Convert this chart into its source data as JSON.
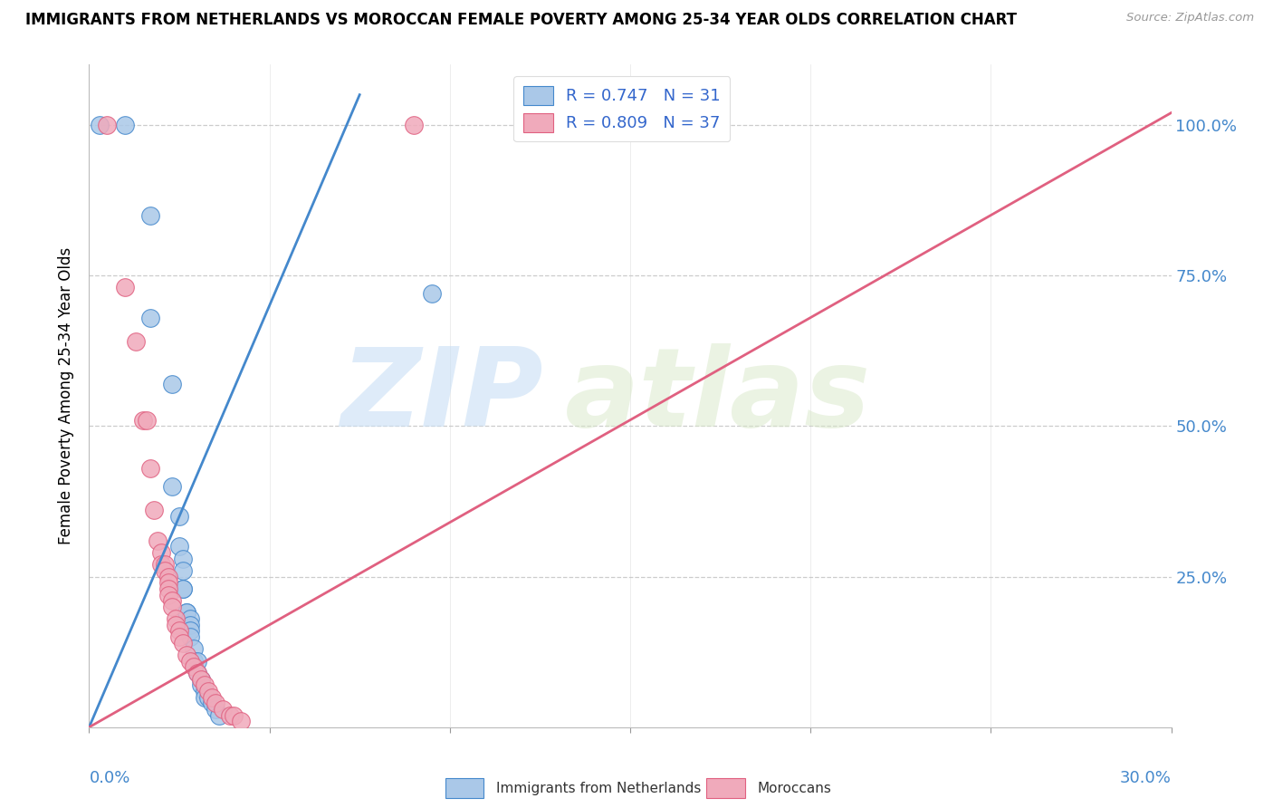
{
  "title": "IMMIGRANTS FROM NETHERLANDS VS MOROCCAN FEMALE POVERTY AMONG 25-34 YEAR OLDS CORRELATION CHART",
  "source": "Source: ZipAtlas.com",
  "ylabel": "Female Poverty Among 25-34 Year Olds",
  "legend_label_blue": "Immigrants from Netherlands",
  "legend_label_pink": "Moroccans",
  "blue_color": "#aac8e8",
  "pink_color": "#f0aabb",
  "blue_line_color": "#4488cc",
  "pink_line_color": "#e06080",
  "watermark_zip": "ZIP",
  "watermark_atlas": "atlas",
  "blue_scatter": [
    [
      0.003,
      1.0
    ],
    [
      0.01,
      1.0
    ],
    [
      0.017,
      0.85
    ],
    [
      0.017,
      0.68
    ],
    [
      0.023,
      0.57
    ],
    [
      0.023,
      0.4
    ],
    [
      0.025,
      0.35
    ],
    [
      0.025,
      0.3
    ],
    [
      0.026,
      0.28
    ],
    [
      0.026,
      0.26
    ],
    [
      0.026,
      0.23
    ],
    [
      0.026,
      0.23
    ],
    [
      0.027,
      0.19
    ],
    [
      0.027,
      0.19
    ],
    [
      0.028,
      0.18
    ],
    [
      0.028,
      0.17
    ],
    [
      0.028,
      0.16
    ],
    [
      0.028,
      0.15
    ],
    [
      0.029,
      0.13
    ],
    [
      0.029,
      0.11
    ],
    [
      0.03,
      0.11
    ],
    [
      0.03,
      0.09
    ],
    [
      0.031,
      0.08
    ],
    [
      0.031,
      0.07
    ],
    [
      0.032,
      0.06
    ],
    [
      0.032,
      0.05
    ],
    [
      0.033,
      0.05
    ],
    [
      0.034,
      0.04
    ],
    [
      0.035,
      0.03
    ],
    [
      0.036,
      0.02
    ],
    [
      0.095,
      0.72
    ]
  ],
  "pink_scatter": [
    [
      0.005,
      1.0
    ],
    [
      0.01,
      0.73
    ],
    [
      0.013,
      0.64
    ],
    [
      0.015,
      0.51
    ],
    [
      0.016,
      0.51
    ],
    [
      0.017,
      0.43
    ],
    [
      0.018,
      0.36
    ],
    [
      0.019,
      0.31
    ],
    [
      0.02,
      0.29
    ],
    [
      0.02,
      0.27
    ],
    [
      0.021,
      0.27
    ],
    [
      0.021,
      0.26
    ],
    [
      0.022,
      0.25
    ],
    [
      0.022,
      0.24
    ],
    [
      0.022,
      0.23
    ],
    [
      0.022,
      0.22
    ],
    [
      0.023,
      0.21
    ],
    [
      0.023,
      0.2
    ],
    [
      0.024,
      0.18
    ],
    [
      0.024,
      0.17
    ],
    [
      0.025,
      0.16
    ],
    [
      0.025,
      0.15
    ],
    [
      0.026,
      0.14
    ],
    [
      0.027,
      0.12
    ],
    [
      0.028,
      0.11
    ],
    [
      0.029,
      0.1
    ],
    [
      0.03,
      0.09
    ],
    [
      0.031,
      0.08
    ],
    [
      0.032,
      0.07
    ],
    [
      0.033,
      0.06
    ],
    [
      0.034,
      0.05
    ],
    [
      0.035,
      0.04
    ],
    [
      0.037,
      0.03
    ],
    [
      0.039,
      0.02
    ],
    [
      0.04,
      0.02
    ],
    [
      0.042,
      0.01
    ],
    [
      0.09,
      1.0
    ]
  ],
  "blue_line_x": [
    0.0,
    0.075
  ],
  "blue_line_y": [
    0.0,
    1.05
  ],
  "pink_line_x": [
    0.0,
    0.3
  ],
  "pink_line_y": [
    0.0,
    1.02
  ],
  "xlim": [
    0.0,
    0.3
  ],
  "ylim": [
    0.0,
    1.1
  ],
  "xticks": [
    0.0,
    0.05,
    0.1,
    0.15,
    0.2,
    0.25,
    0.3
  ],
  "yticks": [
    0.0,
    0.25,
    0.5,
    0.75,
    1.0
  ],
  "right_ylabels": [
    "25.0%",
    "50.0%",
    "75.0%",
    "100.0%"
  ],
  "right_yticks": [
    0.25,
    0.5,
    0.75,
    1.0
  ]
}
